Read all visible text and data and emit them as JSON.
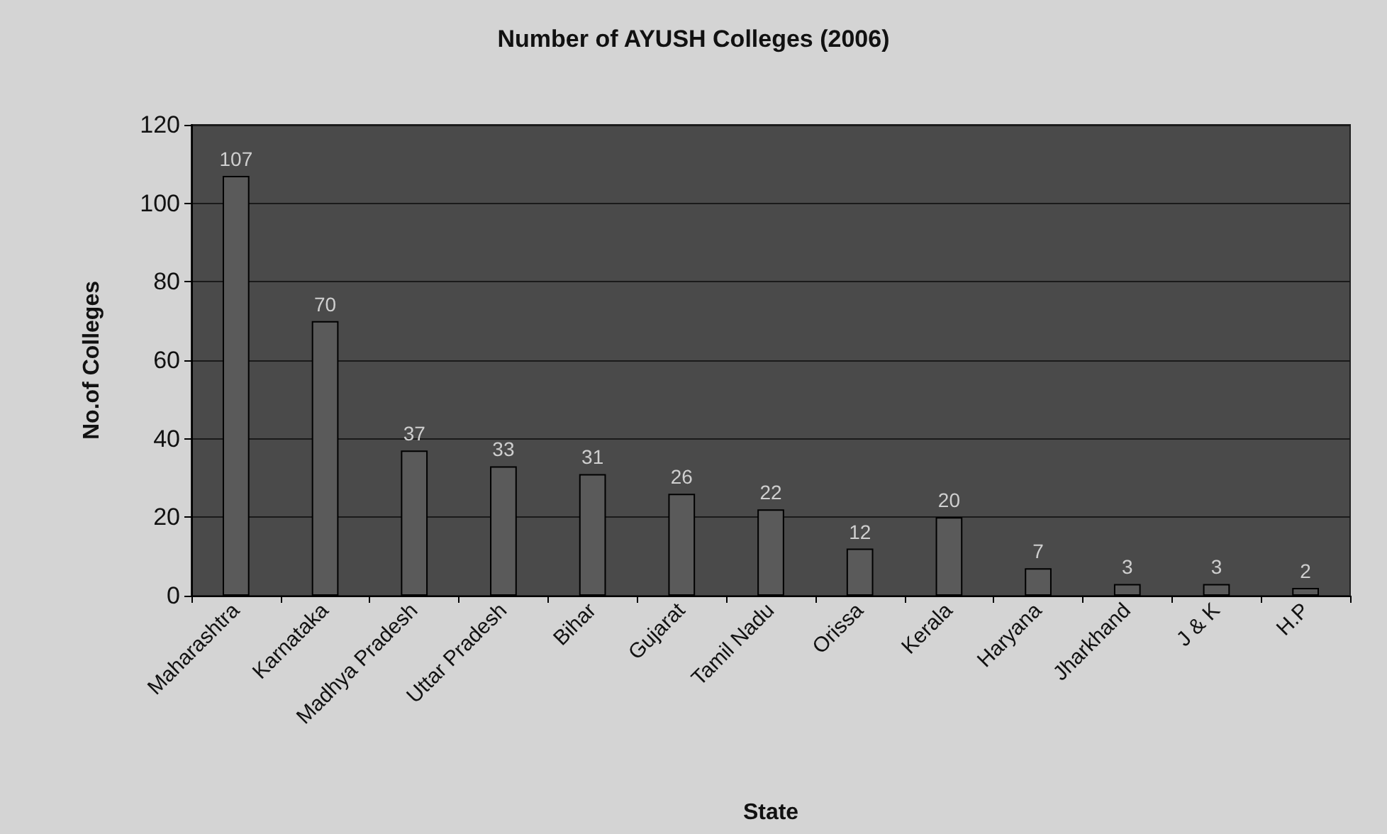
{
  "chart_data": {
    "type": "bar",
    "title": "Number of AYUSH Colleges (2006)",
    "xlabel": "State",
    "ylabel": "No.of Colleges",
    "categories": [
      "Maharashtra",
      "Karnataka",
      "Madhya Pradesh",
      "Uttar Pradesh",
      "Bihar",
      "Gujarat",
      "Tamil Nadu",
      "Orissa",
      "Kerala",
      "Haryana",
      "Jharkhand",
      "J & K",
      "H.P"
    ],
    "values": [
      107,
      70,
      37,
      33,
      31,
      26,
      22,
      12,
      20,
      7,
      3,
      3,
      2
    ],
    "color": "#5a5a5a",
    "ylim": [
      0,
      120
    ],
    "yticks": [
      0,
      20,
      40,
      60,
      80,
      100,
      120
    ],
    "grid": "y",
    "data_labels": true
  }
}
